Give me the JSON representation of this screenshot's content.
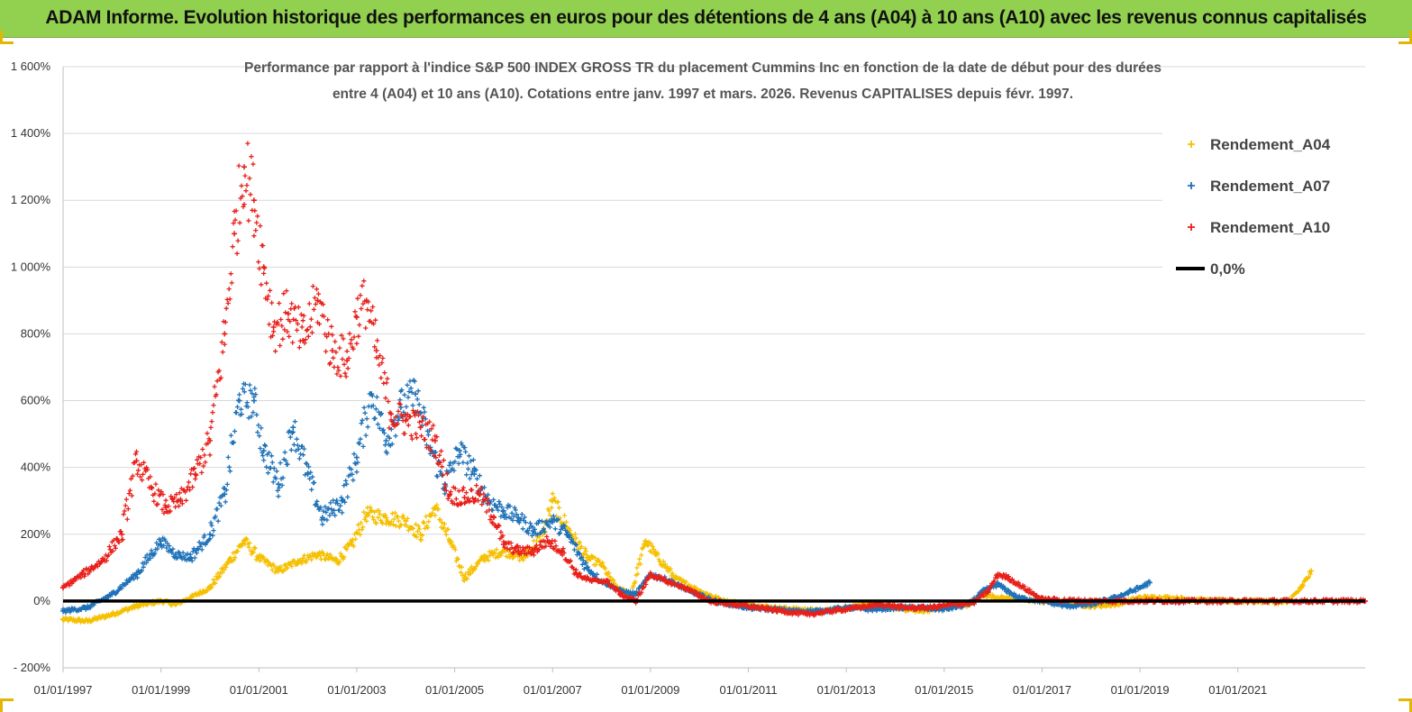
{
  "banner": {
    "title": "ADAM Informe. Evolution historique des performances en euros pour des détentions de 4 ans (A04) à 10 ans (A10) avec les revenus connus capitalisés",
    "background": "#92d050"
  },
  "chart_data": {
    "type": "scatter",
    "title_line1": "Performance par rapport à l'indice S&P 500 INDEX GROSS TR  du placement Cummins Inc en fonction de la date de début pour des durées",
    "title_line2": "entre 4 (A04) et 10 ans (A10). Cotations entre janv. 1997 et mars. 2026. Revenus CAPITALISES depuis févr. 1997.",
    "xlabel": "",
    "ylabel": "",
    "xlim": [
      1997.0,
      2023.6
    ],
    "ylim": [
      -200,
      1600
    ],
    "grid": true,
    "legend_position": "top-right",
    "x_ticks": [
      {
        "value": 1997.0,
        "label": "01/01/1997"
      },
      {
        "value": 1999.0,
        "label": "01/01/1999"
      },
      {
        "value": 2001.0,
        "label": "01/01/2001"
      },
      {
        "value": 2003.0,
        "label": "01/01/2003"
      },
      {
        "value": 2005.0,
        "label": "01/01/2005"
      },
      {
        "value": 2007.0,
        "label": "01/01/2007"
      },
      {
        "value": 2009.0,
        "label": "01/01/2009"
      },
      {
        "value": 2011.0,
        "label": "01/01/2011"
      },
      {
        "value": 2013.0,
        "label": "01/01/2013"
      },
      {
        "value": 2015.0,
        "label": "01/01/2015"
      },
      {
        "value": 2017.0,
        "label": "01/01/2017"
      },
      {
        "value": 2019.0,
        "label": "01/01/2019"
      },
      {
        "value": 2021.0,
        "label": "01/01/2021"
      }
    ],
    "y_ticks": [
      {
        "value": 1600,
        "label": "1 600%"
      },
      {
        "value": 1400,
        "label": "1 400%"
      },
      {
        "value": 1200,
        "label": "1 200%"
      },
      {
        "value": 1000,
        "label": "1 000%"
      },
      {
        "value": 800,
        "label": "800%"
      },
      {
        "value": 600,
        "label": "600%"
      },
      {
        "value": 400,
        "label": "400%"
      },
      {
        "value": 200,
        "label": "200%"
      },
      {
        "value": 0,
        "label": "0%"
      },
      {
        "value": -200,
        "label": "- 200%"
      }
    ],
    "series": [
      {
        "name": "Rendement_A04",
        "color": "#f5c000",
        "marker": "+",
        "x": [
          1997.0,
          1997.5,
          1998.0,
          1998.5,
          1999.0,
          1999.3,
          1999.6,
          2000.0,
          2000.4,
          2000.7,
          2001.0,
          2001.4,
          2001.8,
          2002.2,
          2002.6,
          2002.9,
          2003.2,
          2003.6,
          2004.0,
          2004.3,
          2004.6,
          2004.9,
          2005.2,
          2005.6,
          2006.0,
          2006.4,
          2006.8,
          2007.0,
          2007.3,
          2007.7,
          2008.0,
          2008.3,
          2008.6,
          2008.9,
          2009.1,
          2009.5,
          2010.0,
          2010.5,
          2011.0,
          2011.5,
          2012.0,
          2012.5,
          2013.0,
          2013.5,
          2014.0,
          2014.5,
          2015.0,
          2015.5,
          2015.8,
          2016.1,
          2016.5,
          2017.0,
          2017.5,
          2018.0,
          2018.5,
          2019.0,
          2019.5,
          2020.0,
          2020.5,
          2021.0,
          2021.5,
          2022.0,
          2022.3,
          2022.5
        ],
        "y": [
          -55,
          -60,
          -40,
          -15,
          0,
          -10,
          10,
          40,
          120,
          180,
          130,
          90,
          120,
          140,
          120,
          170,
          260,
          250,
          240,
          200,
          280,
          180,
          70,
          130,
          150,
          130,
          200,
          300,
          220,
          130,
          110,
          40,
          20,
          180,
          140,
          70,
          30,
          0,
          -10,
          -20,
          -25,
          -30,
          -20,
          -10,
          -20,
          -30,
          -20,
          -10,
          20,
          10,
          5,
          0,
          -5,
          -15,
          -10,
          10,
          10,
          5,
          0,
          0,
          0,
          -5,
          40,
          90
        ]
      },
      {
        "name": "Rendement_A07",
        "color": "#1f72b8",
        "marker": "+",
        "x": [
          1997.0,
          1997.5,
          1998.0,
          1998.5,
          1999.0,
          1999.3,
          1999.6,
          2000.0,
          2000.3,
          2000.6,
          2000.9,
          2001.1,
          2001.4,
          2001.7,
          2002.0,
          2002.3,
          2002.7,
          2003.0,
          2003.3,
          2003.6,
          2003.9,
          2004.2,
          2004.5,
          2004.8,
          2005.1,
          2005.4,
          2005.7,
          2006.0,
          2006.3,
          2006.6,
          2007.0,
          2007.3,
          2007.7,
          2008.0,
          2008.4,
          2008.7,
          2009.0,
          2009.4,
          2009.8,
          2010.3,
          2011.0,
          2011.5,
          2012.0,
          2012.5,
          2013.0,
          2013.5,
          2014.0,
          2014.5,
          2015.0,
          2015.5,
          2015.8,
          2016.1,
          2016.5,
          2017.0,
          2017.5,
          2018.0,
          2018.5,
          2019.0,
          2019.2
        ],
        "y": [
          -30,
          -20,
          20,
          80,
          180,
          140,
          130,
          200,
          320,
          600,
          600,
          450,
          350,
          520,
          380,
          250,
          300,
          430,
          620,
          480,
          580,
          620,
          460,
          350,
          450,
          380,
          300,
          270,
          250,
          210,
          240,
          200,
          100,
          60,
          30,
          20,
          80,
          60,
          30,
          0,
          -20,
          -25,
          -30,
          -30,
          -20,
          -25,
          -20,
          -20,
          -25,
          -10,
          30,
          50,
          10,
          0,
          -15,
          -10,
          10,
          40,
          55
        ]
      },
      {
        "name": "Rendement_A10",
        "color": "#e8201a",
        "marker": "+",
        "x": [
          1997.0,
          1997.4,
          1997.8,
          1998.2,
          1998.5,
          1998.8,
          1999.1,
          1999.4,
          1999.7,
          2000.0,
          2000.3,
          2000.5,
          2000.7,
          2000.9,
          2001.1,
          2001.3,
          2001.6,
          2001.9,
          2002.2,
          2002.5,
          2002.8,
          2003.0,
          2003.2,
          2003.4,
          2003.7,
          2004.0,
          2004.3,
          2004.6,
          2004.9,
          2005.2,
          2005.5,
          2005.8,
          2006.0,
          2006.3,
          2006.6,
          2006.9,
          2007.2,
          2007.5,
          2007.8,
          2008.1,
          2008.4,
          2008.7,
          2009.0,
          2009.3,
          2009.7,
          2010.2,
          2010.7,
          2011.2,
          2011.7,
          2012.2,
          2012.7,
          2013.2,
          2013.7,
          2014.2,
          2014.7,
          2015.2,
          2015.6,
          2015.9,
          2016.1,
          2016.3,
          2017.0,
          2018.0,
          2019.0,
          2020.0,
          2021.0,
          2022.0,
          2023.0,
          2023.6
        ],
        "y": [
          40,
          80,
          120,
          200,
          420,
          340,
          280,
          300,
          380,
          480,
          800,
          1100,
          1300,
          1200,
          1000,
          820,
          860,
          780,
          900,
          750,
          720,
          850,
          900,
          750,
          560,
          540,
          520,
          480,
          320,
          310,
          320,
          250,
          170,
          150,
          150,
          180,
          150,
          80,
          60,
          60,
          20,
          0,
          80,
          60,
          40,
          0,
          -10,
          -20,
          -30,
          -40,
          -30,
          -20,
          -10,
          -20,
          -20,
          -10,
          -5,
          30,
          80,
          70,
          5,
          0,
          0,
          0,
          0,
          0,
          0,
          0
        ]
      },
      {
        "name": "0,0%",
        "color": "#000000",
        "marker": "line",
        "x": [
          1997.0,
          2023.6
        ],
        "y": [
          0,
          0
        ]
      }
    ]
  }
}
